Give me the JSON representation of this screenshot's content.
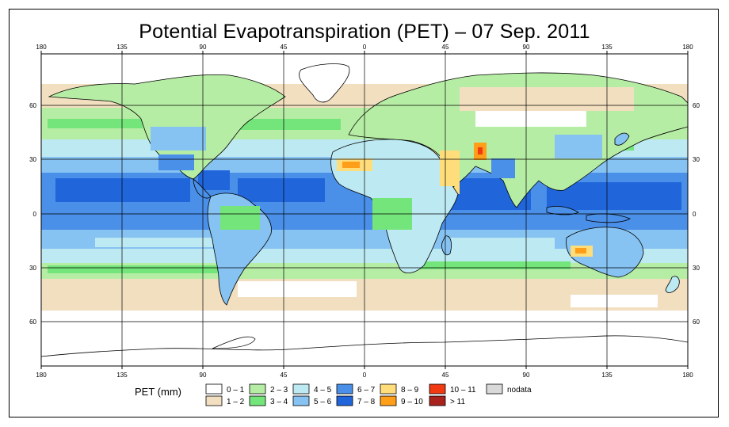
{
  "title": "Potential Evapotranspiration (PET) – 07 Sep. 2011",
  "axes": {
    "lon_ticks": [
      "180",
      "135",
      "90",
      "45",
      "0",
      "45",
      "90",
      "135",
      "180"
    ],
    "lat_ticks": [
      "60",
      "30",
      "0",
      "30",
      "60"
    ]
  },
  "legend": {
    "title": "PET (mm)",
    "items": [
      {
        "label": "0 – 1",
        "color": "#ffffff"
      },
      {
        "label": "1 – 2",
        "color": "#f2dfc0"
      },
      {
        "label": "2 – 3",
        "color": "#b6eda4"
      },
      {
        "label": "3 – 4",
        "color": "#74e57a"
      },
      {
        "label": "4 – 5",
        "color": "#bde9f2"
      },
      {
        "label": "5 – 6",
        "color": "#86c3f2"
      },
      {
        "label": "6 – 7",
        "color": "#4a8fe8"
      },
      {
        "label": "7 – 8",
        "color": "#2165db"
      },
      {
        "label": "8 – 9",
        "color": "#ffdd7a"
      },
      {
        "label": "9 – 10",
        "color": "#ff9e18"
      },
      {
        "label": "10 – 11",
        "color": "#f23a12"
      },
      {
        "label": "> 11",
        "color": "#a8221e"
      },
      {
        "label": "nodata",
        "color": "#d9d9d9"
      }
    ]
  }
}
